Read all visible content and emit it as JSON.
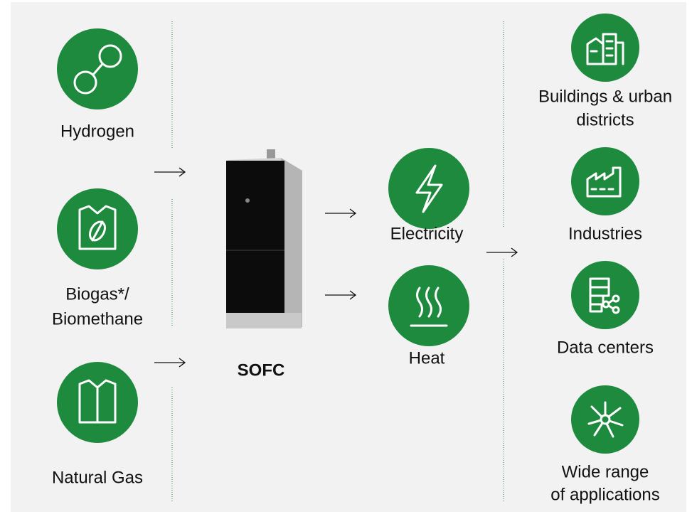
{
  "inputs": [
    {
      "label": [
        "Hydrogen"
      ]
    },
    {
      "label": [
        "Biogas*/",
        "Biomethane"
      ]
    },
    {
      "label": [
        "Natural Gas"
      ]
    }
  ],
  "device": {
    "label": "SOFC"
  },
  "outputs": [
    {
      "label": [
        "Electricity"
      ]
    },
    {
      "label": [
        "Heat"
      ]
    }
  ],
  "applications": [
    {
      "label": [
        "Buildings & urban",
        "districts"
      ]
    },
    {
      "label": [
        "Industries"
      ]
    },
    {
      "label": [
        "Data centers"
      ]
    },
    {
      "label": [
        "Wide range",
        "of applications"
      ]
    }
  ]
}
